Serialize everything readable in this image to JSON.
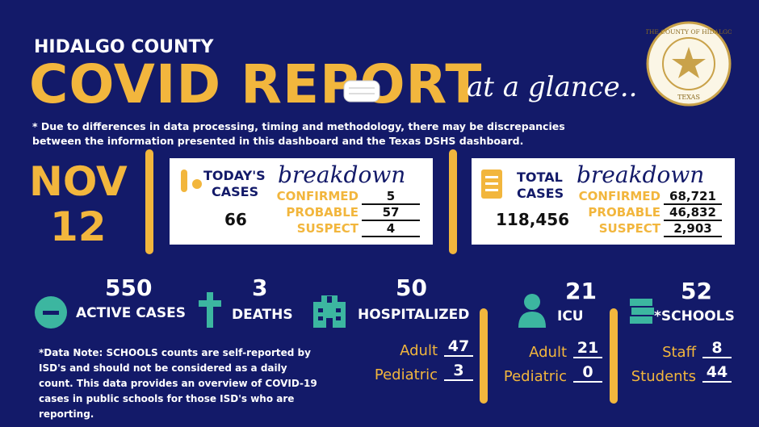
{
  "header": {
    "county": "HIDALGO COUNTY",
    "title": "COVID REPORT",
    "tagline": "at a glance..",
    "seal": {
      "top": "THE COUNTY OF HIDALGO",
      "bottom": "TEXAS"
    }
  },
  "disclaimer": "* Due to differences in data processing, timing and methodology, there may be discrepancies between the information presented in this dashboard and the Texas DSHS dashboard.",
  "date": {
    "month": "NOV",
    "day": "12"
  },
  "today": {
    "label_1": "TODAY'S",
    "label_2": "CASES",
    "heading": "breakdown",
    "total": "66",
    "rows": [
      {
        "label": "CONFIRMED",
        "value": "5"
      },
      {
        "label": "PROBABLE",
        "value": "57"
      },
      {
        "label": "SUSPECT",
        "value": "4"
      }
    ]
  },
  "total": {
    "label_1": "TOTAL",
    "label_2": "CASES",
    "heading": "breakdown",
    "total": "118,456",
    "rows": [
      {
        "label": "CONFIRMED",
        "value": "68,721"
      },
      {
        "label": "PROBABLE",
        "value": "46,832"
      },
      {
        "label": "SUSPECT",
        "value": "2,903"
      }
    ]
  },
  "stats": [
    {
      "value": "550",
      "label": "ACTIVE CASES"
    },
    {
      "value": "3",
      "label": "DEATHS"
    },
    {
      "value": "50",
      "label": "HOSPITALIZED",
      "rows": [
        {
          "label": "Adult",
          "value": "47"
        },
        {
          "label": "Pediatric",
          "value": "3"
        }
      ]
    },
    {
      "value": "21",
      "label": "ICU",
      "rows": [
        {
          "label": "Adult",
          "value": "21"
        },
        {
          "label": "Pediatric",
          "value": "0"
        }
      ]
    },
    {
      "value": "52",
      "label": "*SCHOOLS",
      "rows": [
        {
          "label": "Staff",
          "value": "8"
        },
        {
          "label": "Students",
          "value": "44"
        }
      ]
    }
  ],
  "note": "*Data Note: SCHOOLS counts are self-reported by ISD's and should not be considered as a daily count. This data provides an overview of COVID-19 cases in public schools for those ISD's who are reporting."
}
